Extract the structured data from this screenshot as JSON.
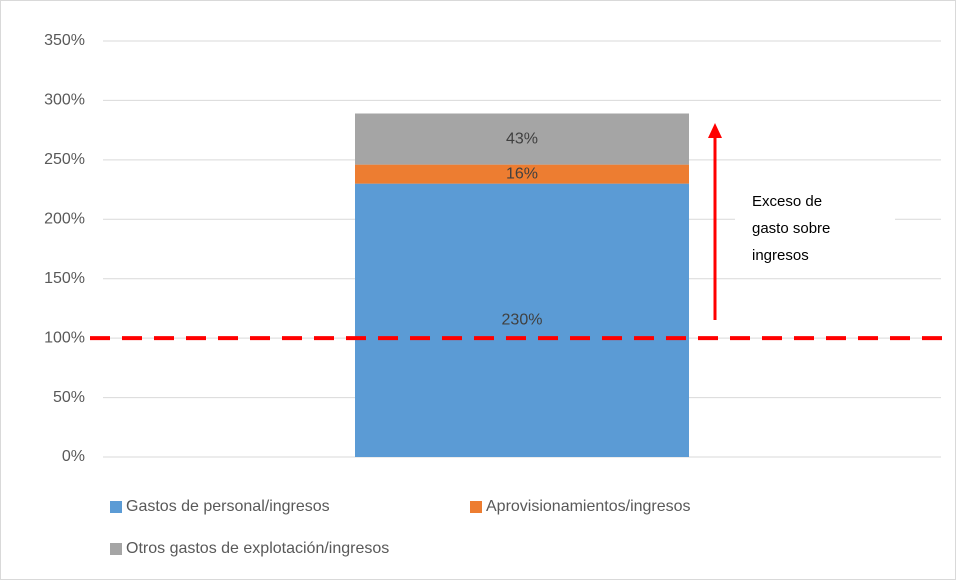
{
  "chart_data": {
    "type": "stacked_bar",
    "categories": [
      null
    ],
    "series": [
      {
        "name": "Gastos de personal/ingresos",
        "color": "#5b9bd5",
        "values": [
          230
        ],
        "value_labels": [
          "230%"
        ]
      },
      {
        "name": "Aprovisionamientos/ingresos",
        "color": "#ed7d31",
        "values": [
          16
        ],
        "value_labels": [
          "16%"
        ]
      },
      {
        "name": "Otros gastos de explotación/ingresos",
        "color": "#a5a5a5",
        "values": [
          43
        ],
        "value_labels": [
          "43%"
        ]
      }
    ],
    "ylim": [
      0,
      350
    ],
    "yticks": [
      {
        "value": 0,
        "label": "0%"
      },
      {
        "value": 50,
        "label": "50%"
      },
      {
        "value": 100,
        "label": "100%"
      },
      {
        "value": 150,
        "label": "150%"
      },
      {
        "value": 200,
        "label": "200%"
      },
      {
        "value": 250,
        "label": "250%"
      },
      {
        "value": 300,
        "label": "300%"
      },
      {
        "value": 350,
        "label": "350%"
      }
    ],
    "grid": true,
    "reference_line": {
      "value": 100,
      "color": "#ff0000"
    },
    "annotation": [
      "Exceso de",
      "gasto sobre",
      "ingresos"
    ],
    "legend": "bottom"
  }
}
